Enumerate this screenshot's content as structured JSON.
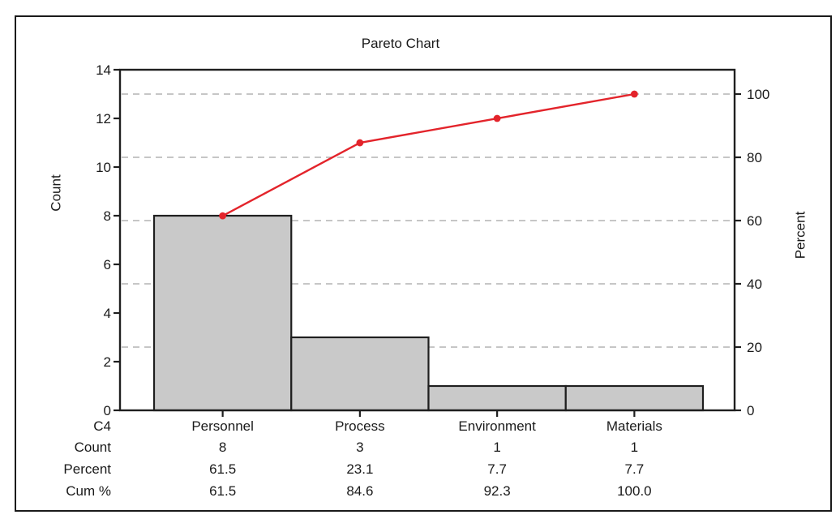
{
  "figure": {
    "background": "#ffffff",
    "frame_border_color": "#1a1a1a"
  },
  "chart": {
    "title": "Pareto Chart",
    "left_axis": {
      "label": "Count"
    },
    "right_axis": {
      "label": "Percent"
    },
    "colors": {
      "bar_fill": "#c9c9c9",
      "bar_stroke": "#1f1f1f",
      "cumulative_line": "#e3242b",
      "marker": "#e3242b",
      "gridline": "#b4b4b4",
      "axis": "#1f1f1f",
      "text": "#1a1a1a"
    }
  },
  "chart_data": {
    "type": "pareto (bar + cumulative percent line)",
    "title": "Pareto Chart",
    "categories": [
      "Personnel",
      "Process",
      "Environment",
      "Materials"
    ],
    "series": [
      {
        "name": "Count",
        "type": "bar",
        "axis": "left",
        "values": [
          8,
          3,
          1,
          1
        ]
      },
      {
        "name": "Percent",
        "type": "derived",
        "values": [
          61.5,
          23.1,
          7.7,
          7.7
        ]
      },
      {
        "name": "Cum %",
        "type": "line",
        "axis": "right",
        "values": [
          61.5,
          84.6,
          92.3,
          100.0
        ]
      }
    ],
    "total_count": 13,
    "left_ylabel": "Count",
    "right_ylabel": "Percent",
    "left_ylim": [
      0,
      14
    ],
    "right_ylim": [
      0,
      100
    ],
    "left_ticks": [
      0,
      2,
      4,
      6,
      8,
      10,
      12,
      14
    ],
    "right_ticks": [
      0,
      20,
      40,
      60,
      80,
      100
    ],
    "grid": "horizontal dashed gridlines at right-axis ticks 20,40,60,80,100",
    "legend": "none"
  },
  "table": {
    "row_labels": [
      "C4",
      "Count",
      "Percent",
      "Cum %"
    ],
    "cells": [
      [
        "Personnel",
        "Process",
        "Environment",
        "Materials"
      ],
      [
        "8",
        "3",
        "1",
        "1"
      ],
      [
        "61.5",
        "23.1",
        "7.7",
        "7.7"
      ],
      [
        "61.5",
        "84.6",
        "92.3",
        "100.0"
      ]
    ]
  }
}
